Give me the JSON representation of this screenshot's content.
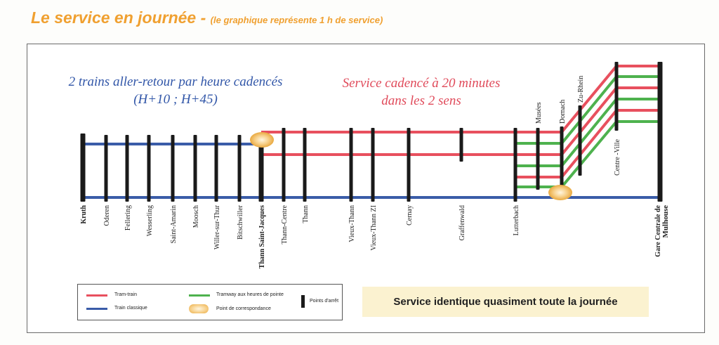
{
  "header": {
    "title": "Le service en journée -",
    "subtitle": "(le graphique représente 1 h de service)"
  },
  "notes": {
    "blue_line1": "2 trains aller-retour par heure cadencés",
    "blue_line2": "(H+10 ; H+45)",
    "red_line1": "Service cadencé à 20 minutes",
    "red_line2": "dans les 2 sens"
  },
  "stations": [
    {
      "id": "kruth",
      "label": "Kruth",
      "bold": true
    },
    {
      "id": "oderen",
      "label": "Oderen"
    },
    {
      "id": "fellering",
      "label": "Fellering"
    },
    {
      "id": "wesserling",
      "label": "Wesserling"
    },
    {
      "id": "saint-amarin",
      "label": "Saint-Amarin"
    },
    {
      "id": "moosch",
      "label": "Moosch"
    },
    {
      "id": "willer-sur-thur",
      "label": "Willer-sur-Thur"
    },
    {
      "id": "bitschwiller",
      "label": "Bitschwiller"
    },
    {
      "id": "thann-saint-jacques",
      "label": "Thann Saint-Jacques",
      "bold": true
    },
    {
      "id": "thann-centre",
      "label": "Thann-Centre"
    },
    {
      "id": "thann",
      "label": "Thann"
    },
    {
      "id": "vieux-thann",
      "label": "Vieux-Thann"
    },
    {
      "id": "vieux-thann-zi",
      "label": "Vieux-Thann ZI"
    },
    {
      "id": "cernay",
      "label": "Cernay"
    },
    {
      "id": "graffenwald",
      "label": "Graffenwald"
    },
    {
      "id": "lutterbach",
      "label": "Lutterbach"
    },
    {
      "id": "musees",
      "label": "Musées"
    },
    {
      "id": "dornach",
      "label": "Dornach"
    },
    {
      "id": "zu-rhein",
      "label": "Zu-Rhein"
    },
    {
      "id": "centre-ville",
      "label": "Centre -Ville"
    },
    {
      "id": "gare-centrale",
      "label": "Gare Centrale de",
      "label2": "Mulhouse",
      "bold": true
    }
  ],
  "legend": {
    "tram_train": "Tram-train",
    "train_classique": "Train classique",
    "tramway": "Tramway aux heures de pointe",
    "correspondance": "Point de correspondance",
    "arret": "Points d'arrêt"
  },
  "banner": "Service identique quasiment toute la journée",
  "colors": {
    "tram_train": "#e8505e",
    "train_classique": "#3a5ca8",
    "tramway": "#4eb24e",
    "stop": "#1a1a1a",
    "title": "#f0a030"
  }
}
